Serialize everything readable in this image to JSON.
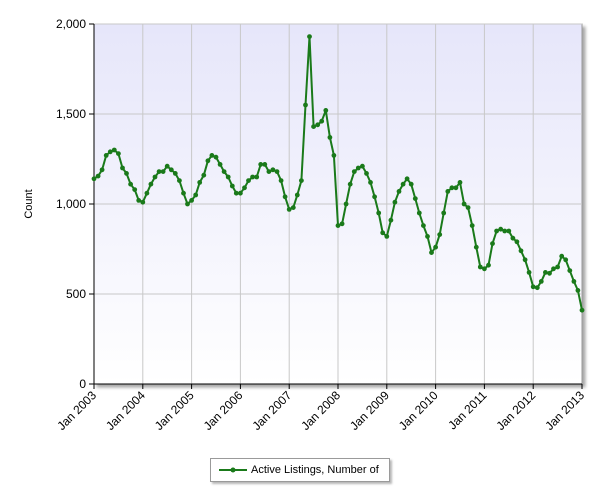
{
  "chart_data": {
    "type": "line",
    "title": "",
    "xlabel": "",
    "ylabel": "Count",
    "ylim": [
      0,
      2000
    ],
    "yticks": [
      0,
      500,
      1000,
      1500,
      2000
    ],
    "ytick_labels": [
      "0",
      "500",
      "1,000",
      "1,500",
      "2,000"
    ],
    "xlim": [
      "2003-01",
      "2013-01"
    ],
    "xticks": [
      "2003-01",
      "2004-01",
      "2005-01",
      "2006-01",
      "2007-01",
      "2008-01",
      "2009-01",
      "2010-01",
      "2011-01",
      "2012-01",
      "2013-01"
    ],
    "xtick_labels": [
      "Jan 2003",
      "Jan 2004",
      "Jan 2005",
      "Jan 2006",
      "Jan 2007",
      "Jan 2008",
      "Jan 2009",
      "Jan 2010",
      "Jan 2011",
      "Jan 2012",
      "Jan 2013"
    ],
    "grid": true,
    "legend_position": "bottom",
    "plot_background_top": "#e6e6fa",
    "plot_background_bottom": "#ffffff",
    "series": [
      {
        "name": "Active Listings, Number of",
        "color": "#1a7a1a",
        "x": [
          "2003-01",
          "2003-02",
          "2003-03",
          "2003-04",
          "2003-05",
          "2003-06",
          "2003-07",
          "2003-08",
          "2003-09",
          "2003-10",
          "2003-11",
          "2003-12",
          "2004-01",
          "2004-02",
          "2004-03",
          "2004-04",
          "2004-05",
          "2004-06",
          "2004-07",
          "2004-08",
          "2004-09",
          "2004-10",
          "2004-11",
          "2004-12",
          "2005-01",
          "2005-02",
          "2005-03",
          "2005-04",
          "2005-05",
          "2005-06",
          "2005-07",
          "2005-08",
          "2005-09",
          "2005-10",
          "2005-11",
          "2005-12",
          "2006-01",
          "2006-02",
          "2006-03",
          "2006-04",
          "2006-05",
          "2006-06",
          "2006-07",
          "2006-08",
          "2006-09",
          "2006-10",
          "2006-11",
          "2006-12",
          "2007-01",
          "2007-02",
          "2007-03",
          "2007-04",
          "2007-05",
          "2007-06",
          "2007-07",
          "2007-08",
          "2007-09",
          "2007-10",
          "2007-11",
          "2007-12",
          "2008-01",
          "2008-02",
          "2008-03",
          "2008-04",
          "2008-05",
          "2008-06",
          "2008-07",
          "2008-08",
          "2008-09",
          "2008-10",
          "2008-11",
          "2008-12",
          "2009-01",
          "2009-02",
          "2009-03",
          "2009-04",
          "2009-05",
          "2009-06",
          "2009-07",
          "2009-08",
          "2009-09",
          "2009-10",
          "2009-11",
          "2009-12",
          "2010-01",
          "2010-02",
          "2010-03",
          "2010-04",
          "2010-05",
          "2010-06",
          "2010-07",
          "2010-08",
          "2010-09",
          "2010-10",
          "2010-11",
          "2010-12",
          "2011-01",
          "2011-02",
          "2011-03",
          "2011-04",
          "2011-05",
          "2011-06",
          "2011-07",
          "2011-08",
          "2011-09",
          "2011-10",
          "2011-11",
          "2011-12",
          "2012-01",
          "2012-02",
          "2012-03",
          "2012-04",
          "2012-05",
          "2012-06",
          "2012-07",
          "2012-08",
          "2012-09",
          "2012-10",
          "2012-11",
          "2012-12",
          "2013-01"
        ],
        "values": [
          1140,
          1155,
          1190,
          1270,
          1290,
          1300,
          1280,
          1200,
          1170,
          1110,
          1080,
          1020,
          1010,
          1060,
          1110,
          1150,
          1180,
          1180,
          1210,
          1190,
          1170,
          1130,
          1060,
          1000,
          1020,
          1050,
          1120,
          1160,
          1240,
          1270,
          1260,
          1220,
          1180,
          1150,
          1100,
          1060,
          1060,
          1090,
          1130,
          1150,
          1150,
          1220,
          1220,
          1180,
          1190,
          1180,
          1130,
          1040,
          970,
          980,
          1050,
          1130,
          1550,
          1930,
          1430,
          1440,
          1460,
          1520,
          1370,
          1270,
          880,
          890,
          1000,
          1110,
          1180,
          1200,
          1210,
          1170,
          1120,
          1040,
          950,
          840,
          820,
          910,
          1010,
          1070,
          1110,
          1140,
          1110,
          1030,
          950,
          880,
          820,
          730,
          760,
          830,
          950,
          1070,
          1090,
          1090,
          1120,
          1000,
          980,
          880,
          760,
          650,
          640,
          660,
          780,
          850,
          860,
          850,
          850,
          810,
          790,
          740,
          690,
          620,
          540,
          535,
          570,
          620,
          615,
          640,
          650,
          710,
          690,
          630,
          570,
          520,
          410
        ]
      }
    ]
  }
}
